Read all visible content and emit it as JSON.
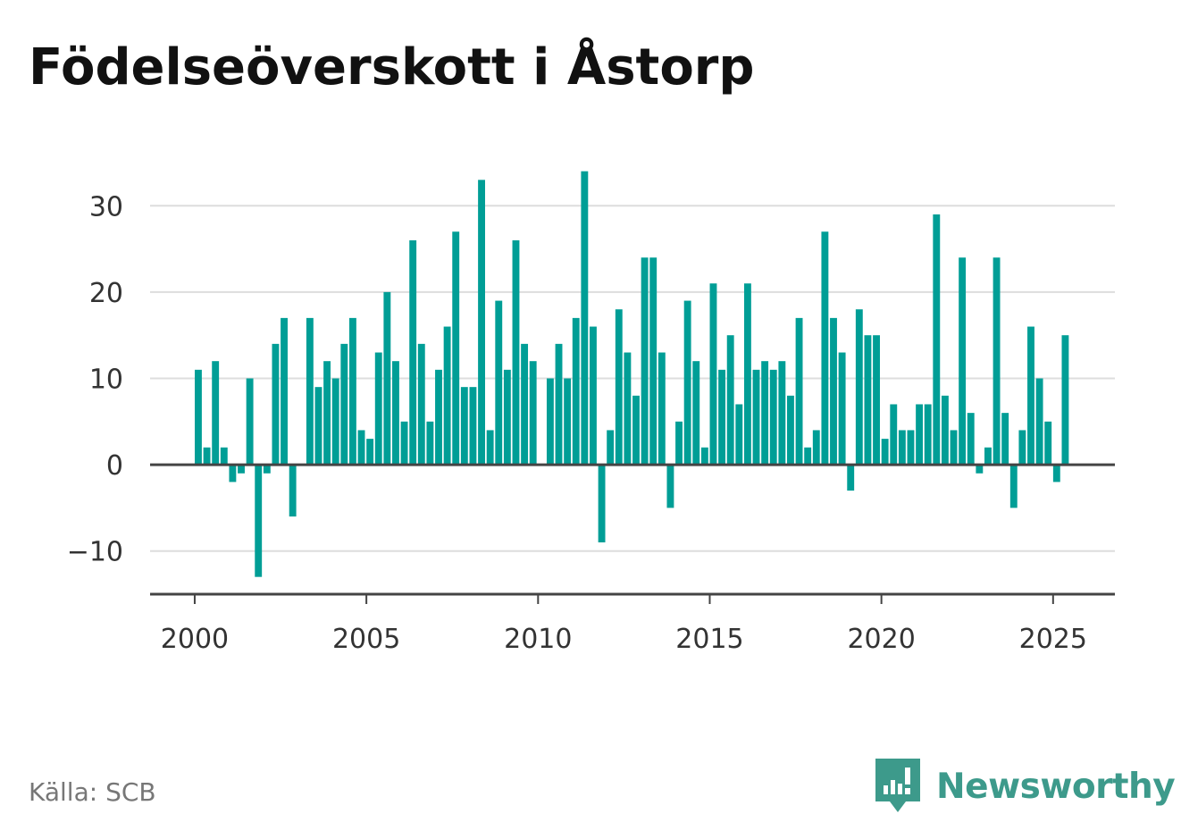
{
  "title": "Födelseöverskott i Åstorp",
  "source": "Källa: SCB",
  "brand": {
    "name": "Newsworthy",
    "icon": "newsworthy-logo-icon",
    "color": "#3d9a8b"
  },
  "colors": {
    "bar": "#009e96",
    "grid": "#dddddd",
    "axis": "#444444"
  },
  "chart_data": {
    "type": "bar",
    "title": "Födelseöverskott i Åstorp",
    "xlabel": "",
    "ylabel": "",
    "x_start_year": 2000,
    "periods_per_year": 4,
    "xlim": [
      1998.7,
      2026.8
    ],
    "ylim": [
      -15,
      35
    ],
    "y_ticks": [
      -10,
      0,
      10,
      20,
      30
    ],
    "y_tick_labels": [
      "−10",
      "0",
      "10",
      "20",
      "30"
    ],
    "x_ticks": [
      2000,
      2005,
      2010,
      2015,
      2020,
      2025
    ],
    "x_tick_labels": [
      "2000",
      "2005",
      "2010",
      "2015",
      "2020",
      "2025"
    ],
    "grid": true,
    "legend": "none",
    "values": [
      11,
      2,
      12,
      2,
      -2,
      -1,
      10,
      -13,
      -1,
      14,
      17,
      -6,
      null,
      17,
      9,
      12,
      10,
      14,
      17,
      4,
      3,
      13,
      20,
      12,
      5,
      26,
      14,
      5,
      11,
      16,
      27,
      9,
      9,
      33,
      4,
      19,
      11,
      26,
      14,
      12,
      null,
      10,
      14,
      10,
      17,
      34,
      16,
      -9,
      4,
      18,
      13,
      8,
      24,
      24,
      13,
      -5,
      5,
      19,
      12,
      2,
      21,
      11,
      15,
      7,
      21,
      11,
      12,
      11,
      12,
      8,
      17,
      2,
      4,
      27,
      17,
      13,
      -3,
      18,
      15,
      15,
      3,
      7,
      4,
      4,
      7,
      7,
      29,
      8,
      4,
      24,
      6,
      -1,
      2,
      24,
      6,
      -5,
      4,
      16,
      10,
      5,
      -2,
      15
    ]
  }
}
